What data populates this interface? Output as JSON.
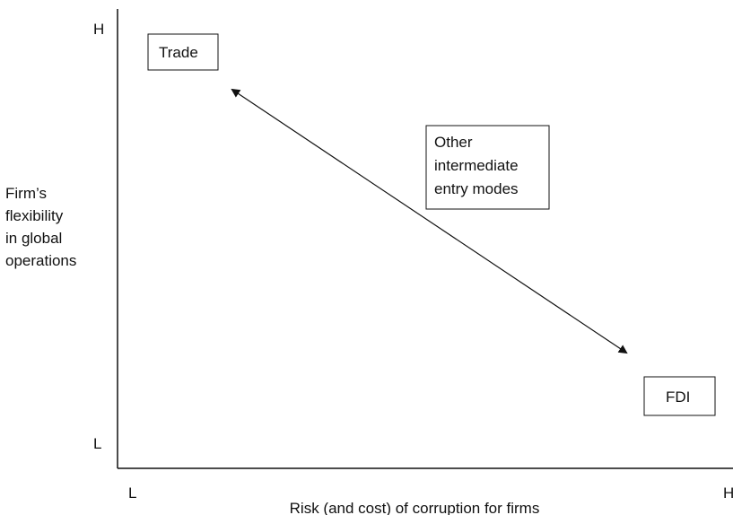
{
  "y_axis": {
    "label": [
      "Firm’s",
      "flexibility",
      "in global",
      "operations"
    ],
    "high": "H",
    "low": "L"
  },
  "x_axis": {
    "label": "Risk (and cost) of corruption for firms",
    "low": "L",
    "high": "H"
  },
  "nodes": [
    {
      "label": [
        "Trade"
      ]
    },
    {
      "label": [
        "Other",
        "intermediate",
        "entry modes"
      ]
    },
    {
      "label": [
        "FDI"
      ]
    }
  ]
}
